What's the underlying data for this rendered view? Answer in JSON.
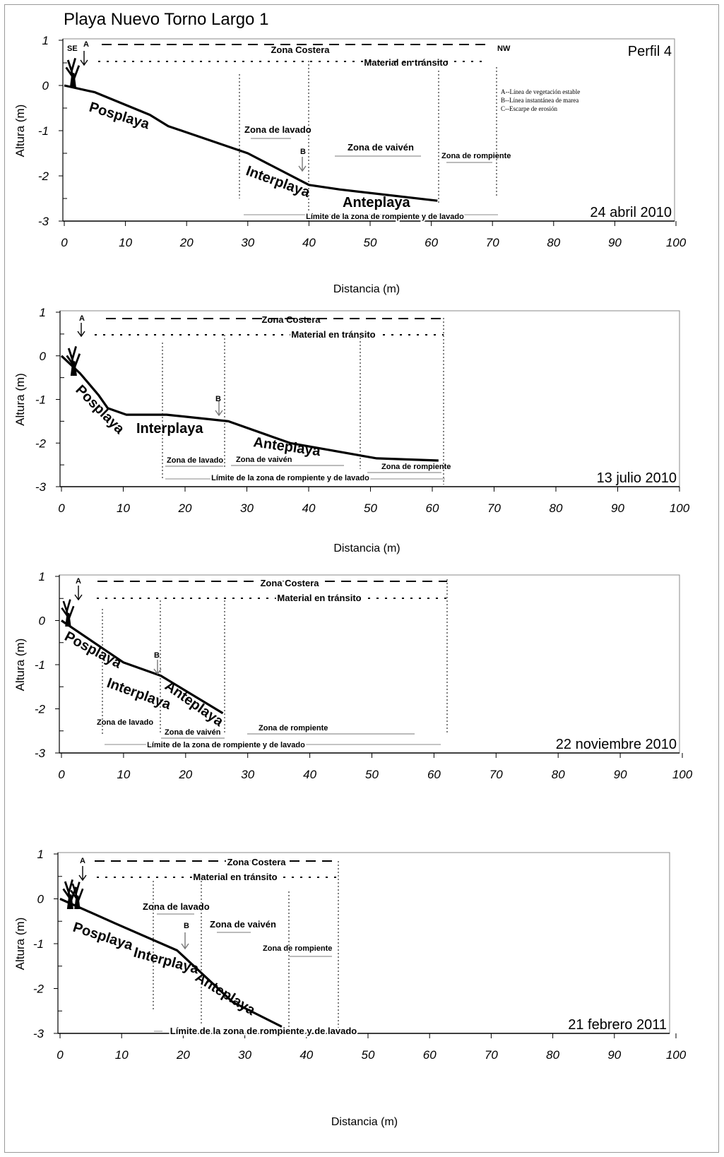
{
  "page": {
    "title": "Playa Nuevo Torno Largo 1"
  },
  "chart_data": [
    {
      "type": "line",
      "title": "Perfil 4",
      "date_label": "24 abril 2010",
      "xlabel": "Distancia (m)",
      "ylabel": "Altura (m)",
      "xlim": [
        0,
        100
      ],
      "ylim": [
        -3,
        1
      ],
      "x_ticks": [
        "0",
        "10",
        "20",
        "30",
        "40",
        "50",
        "60",
        "70",
        "80",
        "90",
        "100"
      ],
      "y_ticks": [
        "1",
        "0",
        "-1",
        "-2",
        "-3"
      ],
      "series": [
        {
          "x": [
            0,
            5,
            14,
            17,
            30,
            40,
            45,
            61
          ],
          "y": [
            0,
            -0.15,
            -0.65,
            -0.9,
            -1.5,
            -2.2,
            -2.3,
            -2.55
          ]
        }
      ],
      "labels": {
        "se": "SE",
        "nw": "NW",
        "a": "A",
        "b": "B",
        "posplaya": "Posplaya",
        "interplaya": "Interplaya",
        "anteplaya": "Anteplaya",
        "zona_costera": "Zona Costera",
        "material": "Material en tránsito",
        "lavado": "Zona de lavado",
        "vaiven": "Zona de vaivén",
        "rompiente": "Zona de rompiente",
        "limite": "Límite de la zona de rompiente y  de lavado"
      },
      "legend_notes": [
        "A--Línea de vegetación estable",
        "B--Línea instantánea de marea",
        "C--Escarpe de erosión"
      ]
    },
    {
      "type": "line",
      "date_label": "13 julio 2010",
      "xlabel": "Distancia (m)",
      "ylabel": "Altura (m)",
      "xlim": [
        0,
        100
      ],
      "ylim": [
        -3,
        1
      ],
      "x_ticks": [
        "0",
        "10",
        "20",
        "30",
        "40",
        "50",
        "60",
        "70",
        "80",
        "90",
        "100"
      ],
      "y_ticks": [
        "1",
        "0",
        "-1",
        "-2",
        "-3"
      ],
      "series": [
        {
          "x": [
            0,
            3,
            6,
            7.5,
            10.5,
            17,
            27,
            37,
            51,
            61
          ],
          "y": [
            0,
            -0.4,
            -0.9,
            -1.2,
            -1.35,
            -1.35,
            -1.5,
            -2.0,
            -2.35,
            -2.4
          ]
        }
      ],
      "labels": {
        "a": "A",
        "b": "B",
        "posplaya": "Posplaya",
        "interplaya": "Interplaya",
        "anteplaya": "Anteplaya",
        "zona_costera": "Zona Costera",
        "material": "Material en tránsito",
        "lavado": "Zona de lavado",
        "vaiven": "Zona de vaivén",
        "rompiente": "Zona de rompiente",
        "limite": "Límite de la zona de rompiente y  de lavado"
      }
    },
    {
      "type": "line",
      "date_label": "22 noviembre 2010",
      "xlabel": "",
      "ylabel": "Altura (m)",
      "xlim": [
        0,
        100
      ],
      "ylim": [
        -3,
        1
      ],
      "x_ticks": [
        "0",
        "10",
        "20",
        "30",
        "40",
        "50",
        "60",
        "70",
        "80",
        "90",
        "100"
      ],
      "y_ticks": [
        "1",
        "0",
        "-1",
        "-2",
        "-3"
      ],
      "series": [
        {
          "x": [
            0,
            10,
            16,
            26
          ],
          "y": [
            0,
            -0.95,
            -1.25,
            -2.1
          ]
        }
      ],
      "labels": {
        "a": "A",
        "b": "B",
        "posplaya": "Posplaya",
        "interplaya": "Interplaya",
        "anteplaya": "Anteplaya",
        "zona_costera": "Zona Costera",
        "material": "Material en tránsito",
        "lavado": "Zona de lavado",
        "vaiven": "Zona de vaivén",
        "rompiente": "Zona de rompiente",
        "limite": "Límite de la zona de rompiente y  de lavado"
      }
    },
    {
      "type": "line",
      "date_label": "21 febrero 2011",
      "xlabel": "Distancia (m)",
      "ylabel": "Altura (m)",
      "xlim": [
        0,
        100
      ],
      "ylim": [
        -3,
        1
      ],
      "x_ticks": [
        "0",
        "10",
        "20",
        "30",
        "40",
        "50",
        "60",
        "70",
        "80",
        "90",
        "100"
      ],
      "y_ticks": [
        "1",
        "0",
        "-1",
        "-2",
        "-3"
      ],
      "series": [
        {
          "x": [
            0,
            9,
            19,
            28,
            36
          ],
          "y": [
            0,
            -0.55,
            -1.15,
            -2.3,
            -2.85
          ]
        }
      ],
      "labels": {
        "a": "A",
        "b": "B",
        "posplaya": "Posplaya",
        "interplaya": "Interplaya",
        "anteplaya": "Anteplaya",
        "zona_costera": "Zona Costera",
        "material": "Material en tránsito",
        "lavado": "Zona de lavado",
        "vaiven": "Zona de vaivén",
        "rompiente": "Zona de rompiente",
        "limite": "Límite de la zona de rompiente y  de lavado"
      }
    }
  ]
}
